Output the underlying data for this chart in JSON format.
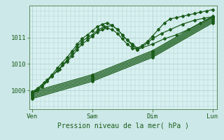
{
  "xlabel": "Pression niveau de la mer( hPa )",
  "x_ticks": [
    0,
    1,
    2,
    3
  ],
  "x_labels": [
    "Ven",
    "Sam",
    "Dim",
    "Lun"
  ],
  "ylim": [
    1008.3,
    1012.2
  ],
  "yticks": [
    1009,
    1010,
    1011
  ],
  "bg_color": "#cce8e8",
  "plot_bg": "#d8f0f0",
  "grid_color": "#aacccc",
  "line_color": "#1a5c1a",
  "marker": "D",
  "markersize": 2.0,
  "linewidth": 0.9,
  "straight_series": [
    [
      1008.85,
      1009.5,
      1010.4,
      1011.7
    ],
    [
      1008.8,
      1009.45,
      1010.35,
      1011.65
    ],
    [
      1008.75,
      1009.4,
      1010.3,
      1011.6
    ],
    [
      1008.7,
      1009.35,
      1010.25,
      1011.55
    ],
    [
      1008.9,
      1009.55,
      1010.45,
      1011.75
    ],
    [
      1008.95,
      1009.6,
      1010.5,
      1011.8
    ]
  ],
  "wavy_series": [
    {
      "x": [
        0.0,
        0.08,
        0.16,
        0.25,
        0.33,
        0.42,
        0.5,
        0.58,
        0.67,
        0.75,
        0.83,
        0.92,
        1.0,
        1.08,
        1.17,
        1.25,
        1.33,
        1.42,
        1.5,
        1.58,
        1.67,
        1.75,
        1.83,
        1.92,
        2.0,
        2.1,
        2.2,
        2.3,
        2.4,
        2.5,
        2.6,
        2.7,
        2.8,
        2.9,
        3.0
      ],
      "y": [
        1008.9,
        1009.05,
        1009.2,
        1009.4,
        1009.6,
        1009.85,
        1010.05,
        1010.25,
        1010.5,
        1010.75,
        1010.95,
        1011.1,
        1011.25,
        1011.4,
        1011.5,
        1011.55,
        1011.45,
        1011.3,
        1011.1,
        1010.9,
        1010.75,
        1010.6,
        1010.7,
        1010.85,
        1011.05,
        1011.3,
        1011.55,
        1011.7,
        1011.75,
        1011.8,
        1011.85,
        1011.9,
        1011.95,
        1012.0,
        1012.05
      ]
    },
    {
      "x": [
        0.0,
        0.08,
        0.17,
        0.25,
        0.33,
        0.42,
        0.5,
        0.58,
        0.67,
        0.75,
        0.83,
        0.92,
        1.0,
        1.1,
        1.2,
        1.33,
        1.42,
        1.5,
        1.58,
        1.67,
        1.75,
        1.83,
        1.92,
        2.0,
        2.15,
        2.3,
        2.5,
        2.7,
        2.85,
        3.0
      ],
      "y": [
        1008.85,
        1009.0,
        1009.15,
        1009.35,
        1009.55,
        1009.75,
        1009.95,
        1010.15,
        1010.4,
        1010.65,
        1010.85,
        1011.0,
        1011.1,
        1011.3,
        1011.4,
        1011.45,
        1011.3,
        1011.1,
        1010.9,
        1010.7,
        1010.55,
        1010.65,
        1010.8,
        1010.95,
        1011.15,
        1011.3,
        1011.5,
        1011.65,
        1011.72,
        1011.78
      ]
    },
    {
      "x": [
        0.0,
        0.1,
        0.2,
        0.33,
        0.45,
        0.58,
        0.67,
        0.75,
        0.83,
        0.92,
        1.0,
        1.08,
        1.17,
        1.25,
        1.33,
        1.42,
        1.5,
        1.58,
        1.67,
        1.75,
        2.0,
        2.2,
        2.4,
        2.6,
        2.8,
        3.0
      ],
      "y": [
        1008.95,
        1009.1,
        1009.3,
        1009.55,
        1009.8,
        1010.1,
        1010.3,
        1010.55,
        1010.75,
        1010.9,
        1011.05,
        1011.2,
        1011.3,
        1011.35,
        1011.3,
        1011.15,
        1010.95,
        1010.75,
        1010.6,
        1010.55,
        1010.75,
        1010.95,
        1011.1,
        1011.3,
        1011.55,
        1011.75
      ]
    }
  ]
}
